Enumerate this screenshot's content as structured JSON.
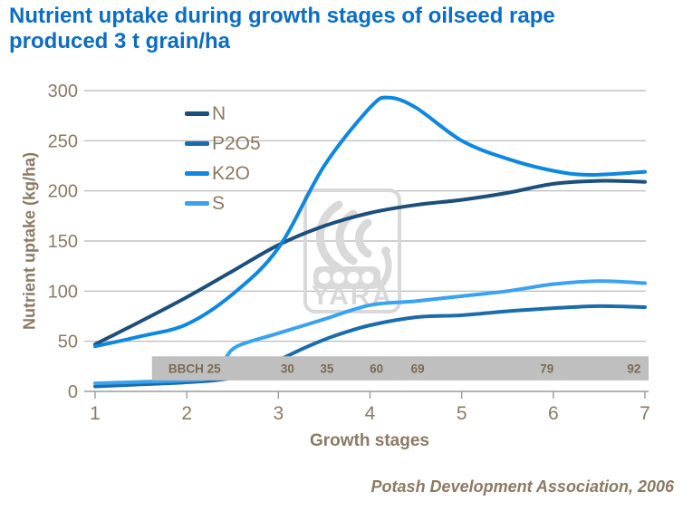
{
  "title": {
    "line1": "Nutrient uptake during growth stages of oilseed rape",
    "line2": "produced 3 t grain/ha"
  },
  "y_axis_title": "Nutrient uptake (kg/ha)",
  "x_axis_title": "Growth stages",
  "footer": {
    "source": "Potash Development Association, 2006"
  },
  "watermark": {
    "label": "YARA"
  },
  "legend": {
    "items": [
      {
        "key": "N",
        "label": "N"
      },
      {
        "key": "P2O5",
        "label": "P2O5"
      },
      {
        "key": "K2O",
        "label": "K2O"
      },
      {
        "key": "S",
        "label": "S"
      }
    ]
  },
  "colors": {
    "title": "#0c6dc2",
    "axis_text": "#8b7a64",
    "grid": "#b5b5b5",
    "axis_line": "#9c9c9c",
    "band_bg": "#bfbfbf",
    "band_text": "#7b6a52",
    "watermark": "#d9d9d9",
    "series": {
      "N": "#1c4f7c",
      "P2O5": "#1a6cab",
      "K2O": "#0d87e0",
      "S": "#3aa2ee"
    }
  },
  "chart_data": {
    "type": "line",
    "title": "Nutrient uptake during growth stages of oilseed rape produced 3 t grain/ha",
    "xlabel": "Growth stages",
    "ylabel": "Nutrient uptake (kg/ha)",
    "xlim": [
      1,
      7
    ],
    "ylim": [
      0,
      300
    ],
    "x_ticks": [
      1,
      2,
      3,
      4,
      5,
      6,
      7
    ],
    "y_ticks": [
      0,
      50,
      100,
      150,
      200,
      250,
      300
    ],
    "grid": "horizontal",
    "legend_position": "inside-top-left",
    "series": [
      {
        "name": "N",
        "points": [
          [
            1,
            47
          ],
          [
            1.5,
            70
          ],
          [
            2,
            94
          ],
          [
            2.5,
            120
          ],
          [
            3,
            146
          ],
          [
            3.5,
            165
          ],
          [
            4,
            178
          ],
          [
            4.5,
            186
          ],
          [
            5,
            191
          ],
          [
            5.5,
            198
          ],
          [
            6,
            207
          ],
          [
            6.5,
            210
          ],
          [
            7,
            209
          ]
        ]
      },
      {
        "name": "P2O5",
        "points": [
          [
            1,
            5
          ],
          [
            1.5,
            7
          ],
          [
            2,
            9
          ],
          [
            2.4,
            12
          ],
          [
            2.75,
            20
          ],
          [
            3,
            31
          ],
          [
            3.3,
            44
          ],
          [
            3.6,
            55
          ],
          [
            4,
            66
          ],
          [
            4.5,
            74
          ],
          [
            5,
            76
          ],
          [
            5.5,
            80
          ],
          [
            6,
            83
          ],
          [
            6.5,
            85
          ],
          [
            7,
            84
          ]
        ]
      },
      {
        "name": "K2O",
        "points": [
          [
            1,
            45
          ],
          [
            1.5,
            55
          ],
          [
            2,
            67
          ],
          [
            2.5,
            97
          ],
          [
            3,
            143
          ],
          [
            3.5,
            225
          ],
          [
            4,
            283
          ],
          [
            4.2,
            293
          ],
          [
            4.5,
            283
          ],
          [
            5,
            250
          ],
          [
            5.5,
            232
          ],
          [
            6,
            220
          ],
          [
            6.4,
            216
          ],
          [
            7,
            219
          ]
        ]
      },
      {
        "name": "S",
        "points": [
          [
            1,
            8
          ],
          [
            1.5,
            9.5
          ],
          [
            2,
            11
          ],
          [
            2.25,
            14
          ],
          [
            2.4,
            30
          ],
          [
            2.55,
            45
          ],
          [
            3,
            58
          ],
          [
            3.5,
            72
          ],
          [
            4,
            86
          ],
          [
            4.5,
            90
          ],
          [
            5,
            95
          ],
          [
            5.5,
            100
          ],
          [
            6,
            107
          ],
          [
            6.5,
            110
          ],
          [
            7,
            108
          ]
        ]
      }
    ],
    "bbch_band": {
      "x_start": 1.62,
      "x_end": 7.04,
      "value_top": 35,
      "value_bottom": 11,
      "labels": [
        {
          "text": "BBCH 25",
          "x": 1.8,
          "align": "left"
        },
        {
          "text": "30",
          "x": 3.1
        },
        {
          "text": "35",
          "x": 3.53
        },
        {
          "text": "60",
          "x": 4.07
        },
        {
          "text": "69",
          "x": 4.52
        },
        {
          "text": "79",
          "x": 5.93
        },
        {
          "text": "92",
          "x": 6.88
        }
      ]
    }
  }
}
